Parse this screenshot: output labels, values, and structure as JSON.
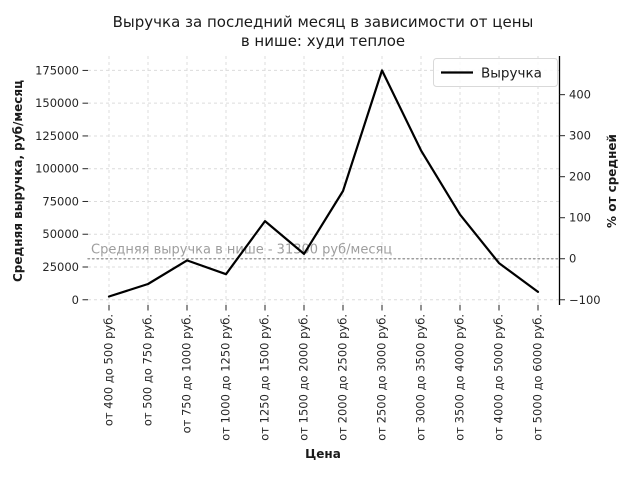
{
  "figure": {
    "title_line1": "Выручка за последний месяц в зависимости от цены",
    "title_line2": "в нише: худи теплое"
  },
  "chart_data": {
    "type": "line",
    "title": "Выручка за последний месяц в зависимости от цены в нише: худи теплое",
    "xlabel": "Цена",
    "ylabel_left": "Средняя выручка, руб/месяц",
    "ylabel_right": "% от средней",
    "legend": {
      "position": "upper right",
      "entries": [
        "Выручка"
      ]
    },
    "categories": [
      "от 400 до 500 руб.",
      "от 500 до 750 руб.",
      "от 750 до 1000 руб.",
      "от 1000 до 1250 руб.",
      "от 1250 до 1500 руб.",
      "от 1500 до 2000 руб.",
      "от 2000 до 2500 руб.",
      "от 2500 до 3000 руб.",
      "от 3000 до 3500 руб.",
      "от 3500 до 4000 руб.",
      "от 4000 до 5000 руб.",
      "от 5000 до 6000 руб."
    ],
    "series": [
      {
        "name": "Выручка",
        "values": [
          2500,
          12000,
          30000,
          19500,
          60000,
          35000,
          83000,
          175000,
          114000,
          65000,
          28000,
          6000
        ]
      }
    ],
    "yticks_left": [
      0,
      25000,
      50000,
      75000,
      100000,
      125000,
      150000,
      175000
    ],
    "yticks_right": [
      -100,
      0,
      100,
      200,
      300,
      400
    ],
    "ylim_left": [
      -4000,
      186000
    ],
    "average_line": {
      "value": 31300,
      "label": "Средняя выручка в нише - 31300 руб/месяц"
    },
    "grid": true,
    "colors": {
      "line": "#000000",
      "grid": "#dcdcdc",
      "average_line": "#9e9e9e",
      "annotation": "#9e9e9e",
      "tick_text": "#262626",
      "spine": "#000000",
      "legend_border": "#d9d9d9"
    }
  }
}
